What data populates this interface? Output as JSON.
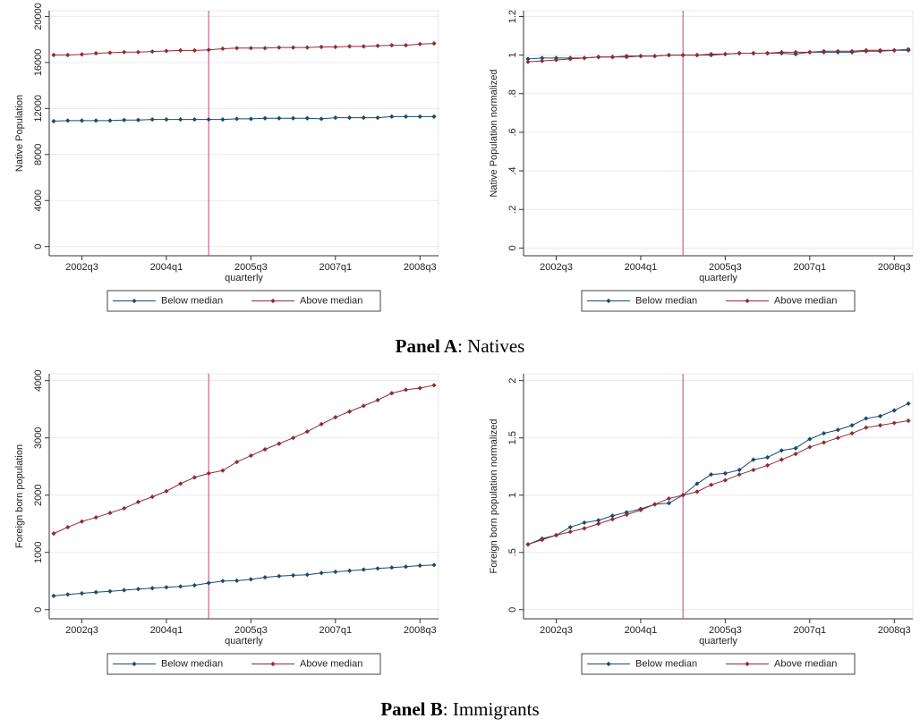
{
  "chart_data": [
    {
      "type": "line",
      "x_label": "quarterly",
      "y_label": "Native Population",
      "categories": [
        null,
        null,
        "2002q3",
        null,
        null,
        null,
        null,
        null,
        "2004q1",
        null,
        null,
        null,
        null,
        null,
        "2005q3",
        null,
        null,
        null,
        null,
        null,
        "2007q1",
        null,
        null,
        null,
        null,
        null,
        "2008q3",
        null
      ],
      "reference_line": {
        "category_index": 11,
        "color": "#c2407a"
      },
      "ylim": [
        -800,
        20500
      ],
      "yticks": [
        0,
        4000,
        8000,
        12000,
        16000,
        20000
      ],
      "grid": true,
      "legend": "bottom",
      "series": [
        {
          "name": "Below median",
          "color": "#1a4a6e",
          "values": [
            10900,
            10950,
            10950,
            10950,
            10950,
            11000,
            11000,
            11050,
            11050,
            11050,
            11050,
            11050,
            11050,
            11100,
            11100,
            11150,
            11150,
            11150,
            11150,
            11100,
            11200,
            11200,
            11200,
            11200,
            11300,
            11300,
            11300,
            11300
          ]
        },
        {
          "name": "Above median",
          "color": "#902c33",
          "values": [
            16650,
            16650,
            16700,
            16800,
            16850,
            16900,
            16900,
            16950,
            17000,
            17050,
            17050,
            17100,
            17200,
            17250,
            17250,
            17250,
            17300,
            17300,
            17300,
            17350,
            17350,
            17400,
            17400,
            17450,
            17500,
            17500,
            17600,
            17650
          ]
        }
      ]
    },
    {
      "type": "line",
      "x_label": "quarterly",
      "y_label": "Native Population normalized",
      "categories": [
        null,
        null,
        "2002q3",
        null,
        null,
        null,
        null,
        null,
        "2004q1",
        null,
        null,
        null,
        null,
        null,
        "2005q3",
        null,
        null,
        null,
        null,
        null,
        "2007q1",
        null,
        null,
        null,
        null,
        null,
        "2008q3",
        null
      ],
      "reference_line": {
        "category_index": 11,
        "color": "#c2407a"
      },
      "ylim": [
        -0.04,
        1.23
      ],
      "yticks": [
        0,
        {
          "value": 0.2,
          "label": ".2"
        },
        {
          "value": 0.4,
          "label": ".4"
        },
        {
          "value": 0.6,
          "label": ".6"
        },
        {
          "value": 0.8,
          "label": ".8"
        },
        1,
        1.2
      ],
      "grid": true,
      "legend": "bottom",
      "series": [
        {
          "name": "Below median",
          "color": "#1a4a6e",
          "values": [
            0.98,
            0.985,
            0.985,
            0.985,
            0.985,
            0.99,
            0.99,
            0.995,
            0.995,
            0.995,
            1.0,
            1.0,
            1.0,
            1.0,
            1.005,
            1.01,
            1.01,
            1.01,
            1.01,
            1.005,
            1.015,
            1.015,
            1.015,
            1.015,
            1.02,
            1.02,
            1.025,
            1.025
          ]
        },
        {
          "name": "Above median",
          "color": "#902c33",
          "values": [
            0.965,
            0.97,
            0.975,
            0.98,
            0.985,
            0.99,
            0.99,
            0.99,
            0.995,
            0.995,
            1.0,
            1.0,
            1.0,
            1.005,
            1.005,
            1.01,
            1.01,
            1.01,
            1.015,
            1.015,
            1.015,
            1.02,
            1.02,
            1.02,
            1.025,
            1.025,
            1.025,
            1.03
          ]
        }
      ]
    },
    {
      "type": "line",
      "x_label": "quarterly",
      "y_label": "Foreign born population",
      "categories": [
        null,
        null,
        "2002q3",
        null,
        null,
        null,
        null,
        null,
        "2004q1",
        null,
        null,
        null,
        null,
        null,
        "2005q3",
        null,
        null,
        null,
        null,
        null,
        "2007q1",
        null,
        null,
        null,
        null,
        null,
        "2008q3",
        null
      ],
      "reference_line": {
        "category_index": 11,
        "color": "#c2407a"
      },
      "ylim": [
        -160,
        4120
      ],
      "yticks": [
        0,
        1000,
        2000,
        3000,
        4000
      ],
      "grid": true,
      "legend": "bottom",
      "series": [
        {
          "name": "Below median",
          "color": "#1a4a6e",
          "values": [
            240,
            265,
            285,
            305,
            320,
            340,
            360,
            375,
            390,
            405,
            425,
            465,
            500,
            505,
            530,
            565,
            585,
            600,
            610,
            640,
            660,
            680,
            700,
            720,
            735,
            750,
            770,
            780
          ]
        },
        {
          "name": "Above median",
          "color": "#902c33",
          "values": [
            1330,
            1440,
            1540,
            1610,
            1690,
            1770,
            1880,
            1970,
            2070,
            2200,
            2310,
            2380,
            2430,
            2580,
            2690,
            2800,
            2900,
            3000,
            3110,
            3240,
            3360,
            3460,
            3560,
            3660,
            3780,
            3840,
            3870,
            3920
          ]
        }
      ]
    },
    {
      "type": "line",
      "x_label": "quarterly",
      "y_label": "Foreign born population normalized",
      "categories": [
        null,
        null,
        "2002q3",
        null,
        null,
        null,
        null,
        null,
        "2004q1",
        null,
        null,
        null,
        null,
        null,
        "2005q3",
        null,
        null,
        null,
        null,
        null,
        "2007q1",
        null,
        null,
        null,
        null,
        null,
        "2008q3",
        null
      ],
      "reference_line": {
        "category_index": 11,
        "color": "#c2407a"
      },
      "ylim": [
        -0.08,
        2.06
      ],
      "yticks": [
        0,
        {
          "value": 0.5,
          "label": ".5"
        },
        1,
        1.5,
        2
      ],
      "grid": true,
      "legend": "bottom",
      "series": [
        {
          "name": "Below median",
          "color": "#1a4a6e",
          "values": [
            0.57,
            0.62,
            0.65,
            0.72,
            0.76,
            0.78,
            0.82,
            0.85,
            0.88,
            0.92,
            0.93,
            1.0,
            1.1,
            1.18,
            1.19,
            1.22,
            1.31,
            1.33,
            1.39,
            1.41,
            1.49,
            1.54,
            1.57,
            1.61,
            1.67,
            1.69,
            1.74,
            1.8
          ]
        },
        {
          "name": "Above median",
          "color": "#902c33",
          "values": [
            0.57,
            0.61,
            0.65,
            0.68,
            0.71,
            0.75,
            0.79,
            0.83,
            0.87,
            0.92,
            0.97,
            1.0,
            1.03,
            1.09,
            1.13,
            1.18,
            1.22,
            1.26,
            1.31,
            1.36,
            1.42,
            1.46,
            1.5,
            1.54,
            1.59,
            1.61,
            1.63,
            1.65
          ]
        }
      ]
    }
  ],
  "panels": [
    {
      "label": "Panel A",
      "text": ": Natives"
    },
    {
      "label": "Panel B",
      "text": ": Immigrants"
    }
  ]
}
